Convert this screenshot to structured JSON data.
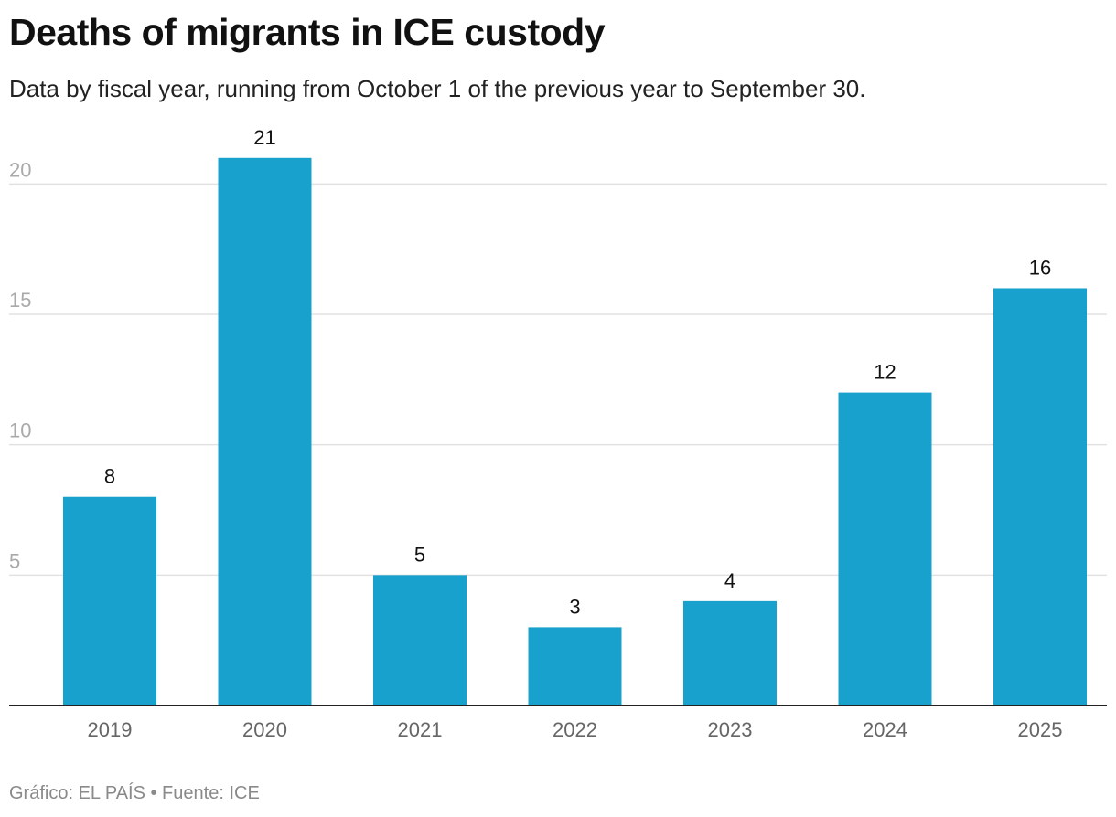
{
  "title": "Deaths of migrants in ICE custody",
  "subtitle": "Data by fiscal year, running from October 1 of the previous year to September 30.",
  "footer": "Gráfico: EL PAÍS • Fuente: ICE",
  "colors": {
    "bar": "#18a1cd",
    "grid": "#e2e2e2",
    "axis": "#222222"
  },
  "chart_data": {
    "type": "bar",
    "title": "Deaths of migrants in ICE custody",
    "subtitle": "Data by fiscal year, running from October 1 of the previous year to September 30.",
    "xlabel": "",
    "ylabel": "",
    "categories": [
      "2019",
      "2020",
      "2021",
      "2022",
      "2023",
      "2024",
      "2025"
    ],
    "values": [
      8,
      21,
      5,
      3,
      4,
      12,
      16
    ],
    "yticks": [
      5,
      10,
      15,
      20
    ],
    "ylim": [
      0,
      22.5
    ],
    "grid": true,
    "legend": "none",
    "data_labels": true
  }
}
